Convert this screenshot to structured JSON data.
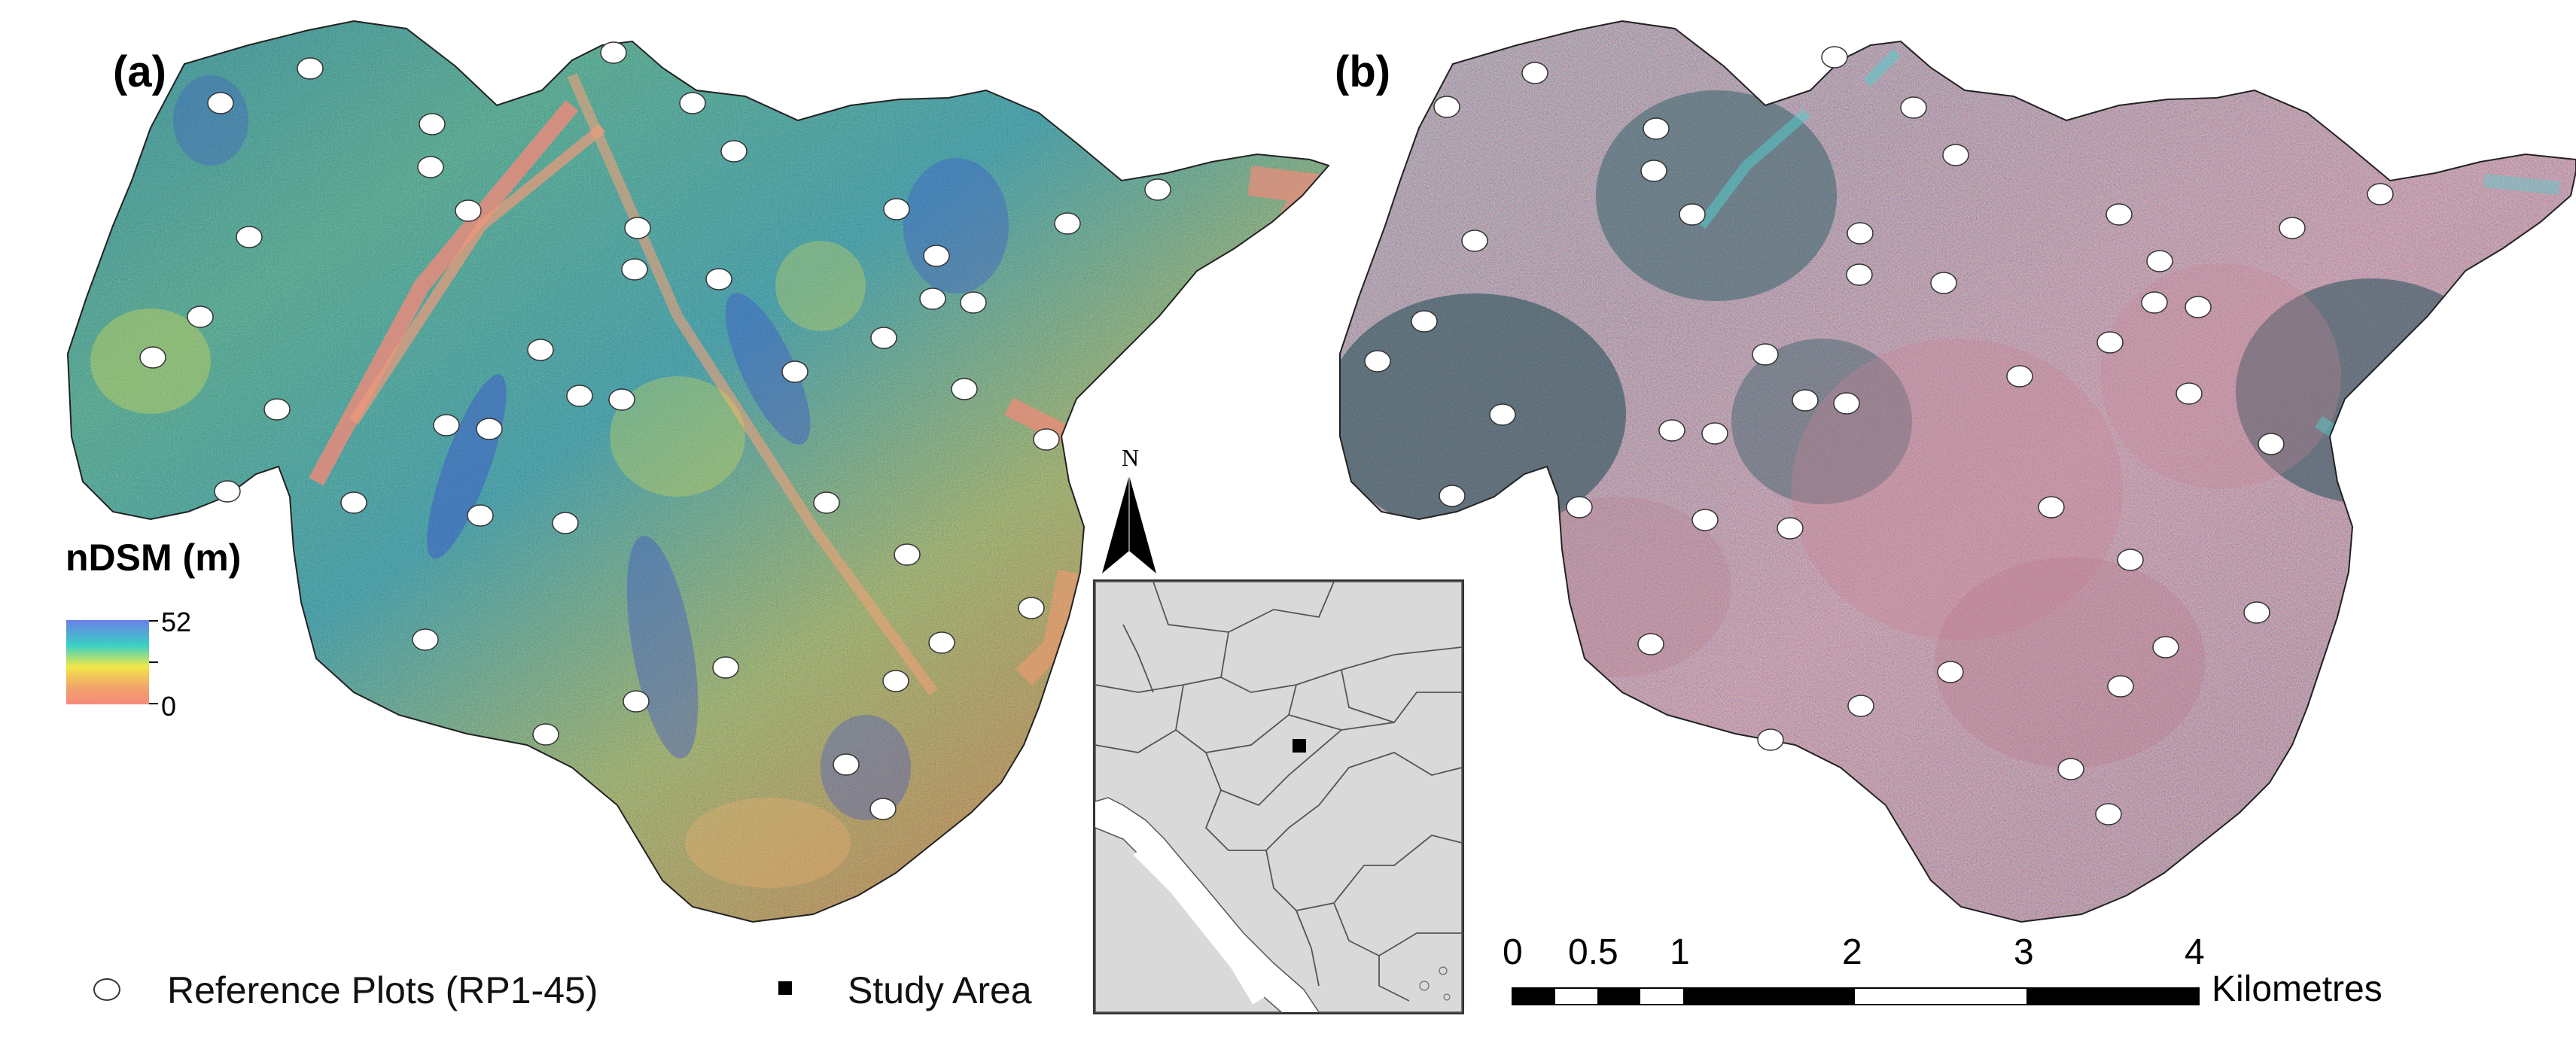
{
  "panel_a": {
    "label": "(a)",
    "legend_title": "nDSM (m)",
    "color_max": "52",
    "color_min": "0",
    "colors": [
      "#6c7fe8",
      "#3ad0c4",
      "#f0e84a",
      "#f2a36a",
      "#f58a7a"
    ]
  },
  "panel_b": {
    "label": "(b)"
  },
  "inset": {
    "north_label": "N",
    "study_area_color": "#000000",
    "map_fill": "#d9d9d9"
  },
  "legend": {
    "reference_plots": "Reference Plots (RP1-45)",
    "study_area": "Study Area"
  },
  "scale_bar": {
    "ticks": [
      "0",
      "0.5",
      "1",
      "2",
      "3",
      "4"
    ],
    "tick_values_km": [
      0,
      0.5,
      1,
      2,
      3,
      4
    ],
    "unit": "Kilometres"
  }
}
